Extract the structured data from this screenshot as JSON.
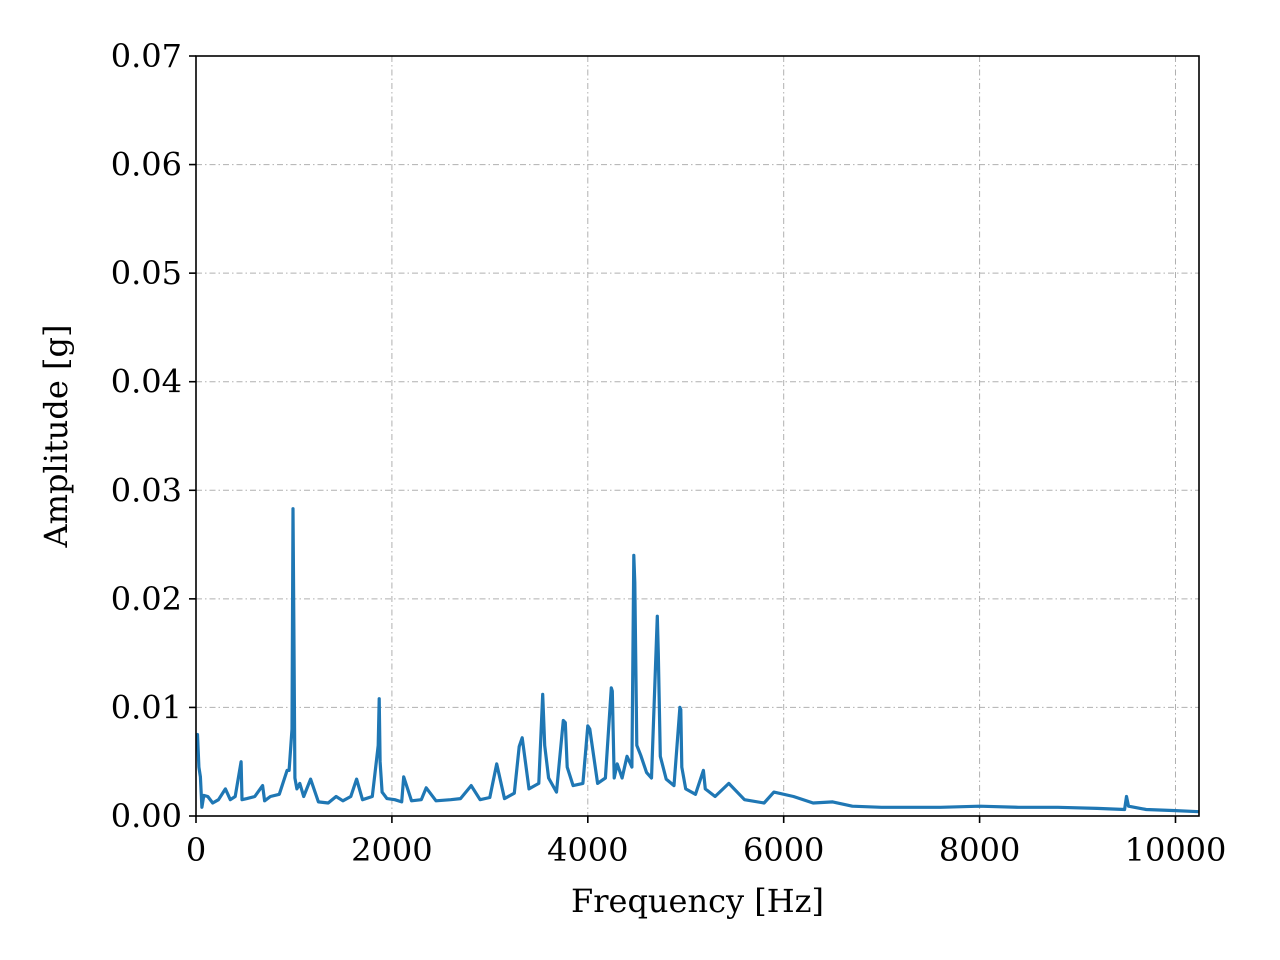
{
  "chart_data": {
    "type": "line",
    "title": "",
    "xlabel": "Frequency [Hz]",
    "ylabel": "Amplitude [g]",
    "xlim": [
      0,
      10240
    ],
    "ylim": [
      0,
      0.07
    ],
    "x_ticks": [
      0,
      2000,
      4000,
      6000,
      8000,
      10000
    ],
    "x_tick_labels": [
      "0",
      "2000",
      "4000",
      "6000",
      "8000",
      "10000"
    ],
    "y_ticks": [
      0,
      0.01,
      0.02,
      0.03,
      0.04,
      0.05,
      0.06,
      0.07
    ],
    "y_tick_labels": [
      "0.00",
      "0.01",
      "0.02",
      "0.03",
      "0.04",
      "0.05",
      "0.06",
      "0.07"
    ],
    "grid": true,
    "series": [
      {
        "color": "#1f77b4",
        "x": [
          0,
          15,
          30,
          45,
          60,
          80,
          120,
          170,
          230,
          300,
          350,
          400,
          460,
          470,
          520,
          600,
          680,
          700,
          760,
          850,
          930,
          950,
          980,
          990,
          1000,
          1010,
          1030,
          1060,
          1100,
          1170,
          1250,
          1350,
          1430,
          1500,
          1580,
          1640,
          1700,
          1800,
          1860,
          1870,
          1880,
          1900,
          1950,
          2030,
          2100,
          2120,
          2200,
          2300,
          2350,
          2450,
          2600,
          2700,
          2810,
          2900,
          3000,
          3070,
          3150,
          3250,
          3300,
          3330,
          3400,
          3500,
          3540,
          3560,
          3600,
          3680,
          3750,
          3770,
          3790,
          3850,
          3950,
          4000,
          4020,
          4100,
          4180,
          4240,
          4250,
          4270,
          4300,
          4350,
          4400,
          4450,
          4470,
          4480,
          4500,
          4540,
          4600,
          4650,
          4710,
          4720,
          4740,
          4800,
          4880,
          4940,
          4950,
          4960,
          5000,
          5100,
          5180,
          5200,
          5300,
          5440,
          5600,
          5800,
          5900,
          6100,
          6300,
          6500,
          6700,
          7000,
          7300,
          7600,
          8000,
          8400,
          8800,
          9200,
          9480,
          9500,
          9520,
          9700,
          10000,
          10240
        ],
        "y": [
          0.0074,
          0.0075,
          0.0045,
          0.0036,
          0.0008,
          0.0019,
          0.0018,
          0.0012,
          0.0015,
          0.0025,
          0.0015,
          0.0018,
          0.005,
          0.0015,
          0.0016,
          0.0018,
          0.0028,
          0.0014,
          0.0018,
          0.002,
          0.0042,
          0.0042,
          0.008,
          0.0283,
          0.017,
          0.0035,
          0.0025,
          0.003,
          0.0018,
          0.0034,
          0.0013,
          0.0012,
          0.0018,
          0.0014,
          0.0018,
          0.0034,
          0.0015,
          0.0018,
          0.0065,
          0.0108,
          0.005,
          0.0022,
          0.0016,
          0.0015,
          0.0013,
          0.0036,
          0.0014,
          0.0015,
          0.0026,
          0.0014,
          0.0015,
          0.0016,
          0.0028,
          0.0015,
          0.0017,
          0.0048,
          0.0016,
          0.0021,
          0.0064,
          0.0072,
          0.0025,
          0.003,
          0.0112,
          0.0065,
          0.0035,
          0.0022,
          0.0088,
          0.0086,
          0.0045,
          0.0028,
          0.003,
          0.0083,
          0.008,
          0.003,
          0.0035,
          0.0118,
          0.0115,
          0.0035,
          0.0048,
          0.0035,
          0.0055,
          0.0045,
          0.024,
          0.0215,
          0.0065,
          0.0056,
          0.004,
          0.0035,
          0.0184,
          0.015,
          0.0055,
          0.0034,
          0.0028,
          0.01,
          0.0098,
          0.0045,
          0.0025,
          0.002,
          0.0042,
          0.0025,
          0.0018,
          0.003,
          0.0015,
          0.0012,
          0.0022,
          0.0018,
          0.0012,
          0.0013,
          0.0009,
          0.0008,
          0.0008,
          0.0008,
          0.0009,
          0.0008,
          0.0008,
          0.0007,
          0.0006,
          0.0018,
          0.0009,
          0.0006,
          0.0005,
          0.0004
        ]
      }
    ]
  }
}
